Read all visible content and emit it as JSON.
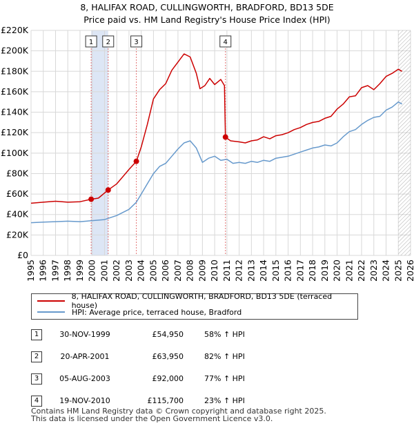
{
  "title_line1": "8, HALIFAX ROAD, CULLINGWORTH, BRADFORD, BD13 5DE",
  "title_line2": "Price paid vs. HM Land Registry's House Price Index (HPI)",
  "colors": {
    "red": "#cc0000",
    "blue": "#6699cc",
    "highlight": "#dde6f5",
    "grid": "#d8d8d8",
    "future_hatch": "#999999"
  },
  "chart_data": {
    "type": "line",
    "title": "Price paid vs. HM Land Registry's House Price Index (HPI)",
    "x_range": [
      1995,
      2026
    ],
    "ylim": [
      0,
      220000
    ],
    "y_ticks": [
      0,
      20000,
      40000,
      60000,
      80000,
      100000,
      120000,
      140000,
      160000,
      180000,
      200000,
      220000
    ],
    "y_tick_labels": [
      "£0",
      "£20K",
      "£40K",
      "£60K",
      "£80K",
      "£100K",
      "£120K",
      "£140K",
      "£160K",
      "£180K",
      "£200K",
      "£220K"
    ],
    "x_ticks": [
      1995,
      1996,
      1997,
      1998,
      1999,
      2000,
      2001,
      2002,
      2003,
      2004,
      2005,
      2006,
      2007,
      2008,
      2009,
      2010,
      2011,
      2012,
      2013,
      2014,
      2015,
      2016,
      2017,
      2018,
      2019,
      2020,
      2021,
      2022,
      2023,
      2024,
      2025,
      2026
    ],
    "x_tick_labels": [
      "1995",
      "1996",
      "1997",
      "1998",
      "1999",
      "2000",
      "2001",
      "2002",
      "2003",
      "2004",
      "2005",
      "2006",
      "2007",
      "2008",
      "2009",
      "2010",
      "2011",
      "2012",
      "2013",
      "2014",
      "2015",
      "2016",
      "2017",
      "2018",
      "2019",
      "2020",
      "2021",
      "2022",
      "2023",
      "2024",
      "2025",
      "2026"
    ],
    "grid": true,
    "highlight_spans": [
      [
        1999.91,
        2001.3
      ]
    ],
    "future_from": 2025.0,
    "series": [
      {
        "name": "8, HALIFAX ROAD, CULLINGWORTH, BRADFORD, BD13 5DE (terraced house)",
        "color": "#cc0000",
        "x": [
          1995,
          1996,
          1997,
          1998,
          1999,
          1999.91,
          2000.5,
          2001.3,
          2002,
          2002.5,
          2003,
          2003.6,
          2004,
          2004.5,
          2005,
          2005.5,
          2006,
          2006.5,
          2007,
          2007.5,
          2008,
          2008.5,
          2008.8,
          2009.2,
          2009.6,
          2010,
          2010.5,
          2010.8,
          2010.88,
          2011.3,
          2012,
          2012.5,
          2013,
          2013.5,
          2014,
          2014.5,
          2015,
          2015.5,
          2016,
          2016.5,
          2017,
          2017.5,
          2018,
          2018.5,
          2019,
          2019.5,
          2020,
          2020.5,
          2021,
          2021.5,
          2022,
          2022.5,
          2023,
          2023.5,
          2024,
          2024.5,
          2025,
          2025.3
        ],
        "y": [
          51000,
          52000,
          53000,
          52000,
          52500,
          54950,
          56000,
          63950,
          70000,
          77000,
          84000,
          92000,
          106000,
          128000,
          153000,
          162000,
          168000,
          181000,
          189000,
          197000,
          194000,
          178000,
          163000,
          166000,
          173000,
          167000,
          172000,
          166000,
          115700,
          112000,
          111000,
          110000,
          112000,
          113000,
          116000,
          114000,
          117000,
          118000,
          120000,
          123000,
          125000,
          128000,
          130000,
          131000,
          134000,
          136000,
          143000,
          148000,
          155000,
          156000,
          164000,
          166000,
          162000,
          168000,
          175000,
          178000,
          182000,
          180000
        ]
      },
      {
        "name": "HPI: Average price, terraced house, Bradford",
        "color": "#6699cc",
        "x": [
          1995,
          1996,
          1997,
          1998,
          1999,
          2000,
          2001,
          2002,
          2003,
          2003.6,
          2004,
          2004.5,
          2005,
          2005.5,
          2006,
          2006.5,
          2007,
          2007.5,
          2008,
          2008.5,
          2009,
          2009.5,
          2010,
          2010.5,
          2011,
          2011.5,
          2012,
          2012.5,
          2013,
          2013.5,
          2014,
          2014.5,
          2015,
          2015.5,
          2016,
          2016.5,
          2017,
          2017.5,
          2018,
          2018.5,
          2019,
          2019.5,
          2020,
          2020.5,
          2021,
          2021.5,
          2022,
          2022.5,
          2023,
          2023.5,
          2024,
          2024.5,
          2025,
          2025.3
        ],
        "y": [
          32000,
          32500,
          33000,
          33500,
          33000,
          34000,
          35000,
          39000,
          45000,
          52000,
          60000,
          70000,
          80000,
          87000,
          90000,
          97000,
          104000,
          110000,
          112000,
          105000,
          91000,
          95000,
          97000,
          93000,
          94000,
          90000,
          91000,
          90000,
          92000,
          91000,
          93000,
          92000,
          95000,
          96000,
          97000,
          99000,
          101000,
          103000,
          105000,
          106000,
          108000,
          107000,
          110000,
          116000,
          121000,
          123000,
          128000,
          132000,
          135000,
          136000,
          142000,
          145000,
          150000,
          148000
        ]
      }
    ],
    "sale_markers": [
      {
        "label": "1",
        "x": 1999.91,
        "y": 54950
      },
      {
        "label": "2",
        "x": 2001.3,
        "y": 63950
      },
      {
        "label": "3",
        "x": 2003.6,
        "y": 92000
      },
      {
        "label": "4",
        "x": 2010.88,
        "y": 115700
      }
    ]
  },
  "legend": {
    "red_label": "8, HALIFAX ROAD, CULLINGWORTH, BRADFORD, BD13 5DE (terraced house)",
    "blue_label": "HPI: Average price, terraced house, Bradford"
  },
  "sales": [
    {
      "num": "1",
      "date": "30-NOV-1999",
      "price": "£54,950",
      "pct": "58% ↑ HPI"
    },
    {
      "num": "2",
      "date": "20-APR-2001",
      "price": "£63,950",
      "pct": "82% ↑ HPI"
    },
    {
      "num": "3",
      "date": "05-AUG-2003",
      "price": "£92,000",
      "pct": "77% ↑ HPI"
    },
    {
      "num": "4",
      "date": "19-NOV-2010",
      "price": "£115,700",
      "pct": "23% ↑ HPI"
    }
  ],
  "footer": {
    "line1": "Contains HM Land Registry data © Crown copyright and database right 2025.",
    "line2": "This data is licensed under the Open Government Licence v3.0."
  }
}
